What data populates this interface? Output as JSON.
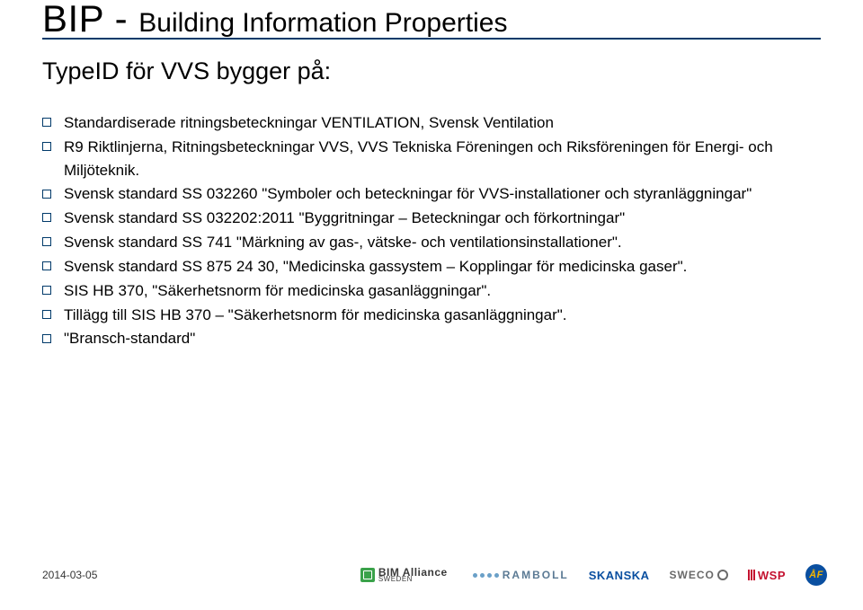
{
  "title": {
    "prefix": "BIP - ",
    "rest": "Building Information Properties"
  },
  "subtitle": "TypeID för VVS bygger på:",
  "colors": {
    "accent": "#003a6a",
    "text": "#000000",
    "footer_text": "#353535",
    "skanska": "#0a4fa0",
    "wsp": "#c4112f",
    "bim": "#3aa24a",
    "sweco": "#6a6a6a",
    "ramboll": "#5b7a94",
    "af_bg": "#0a4fa0",
    "af_fg": "#f4b400"
  },
  "bullets": [
    "Standardiserade ritningsbeteckningar VENTILATION, Svensk Ventilation",
    "R9 Riktlinjerna, Ritningsbeteckningar VVS, VVS Tekniska Föreningen och Riksföreningen för Energi- och Miljöteknik.",
    "Svensk standard SS 032260 \"Symboler och beteckningar för VVS-installationer och styranläggningar\"",
    "Svensk standard SS 032202:2011 \"Byggritningar – Beteckningar och förkortningar\"",
    "Svensk standard SS 741 \"Märkning av gas-, vätske- och ventilationsinstallationer\".",
    "Svensk standard SS 875 24 30, \"Medicinska gassystem – Kopplingar för medicinska gaser\".",
    "SIS HB 370, \"Säkerhetsnorm för medicinska gasanläggningar\".",
    "Tillägg till SIS HB 370 – \"Säkerhetsnorm för medicinska gasanläggningar\".",
    "\"Bransch-standard\""
  ],
  "footer": {
    "date": "2014-03-05",
    "logos": {
      "bim_alliance": {
        "main": "BIM Alliance",
        "sub": "SWEDEN"
      },
      "ramboll": "RAMBOLL",
      "skanska": "SKANSKA",
      "sweco": "SWECO",
      "wsp": "WSP",
      "af": "ÅF"
    }
  }
}
